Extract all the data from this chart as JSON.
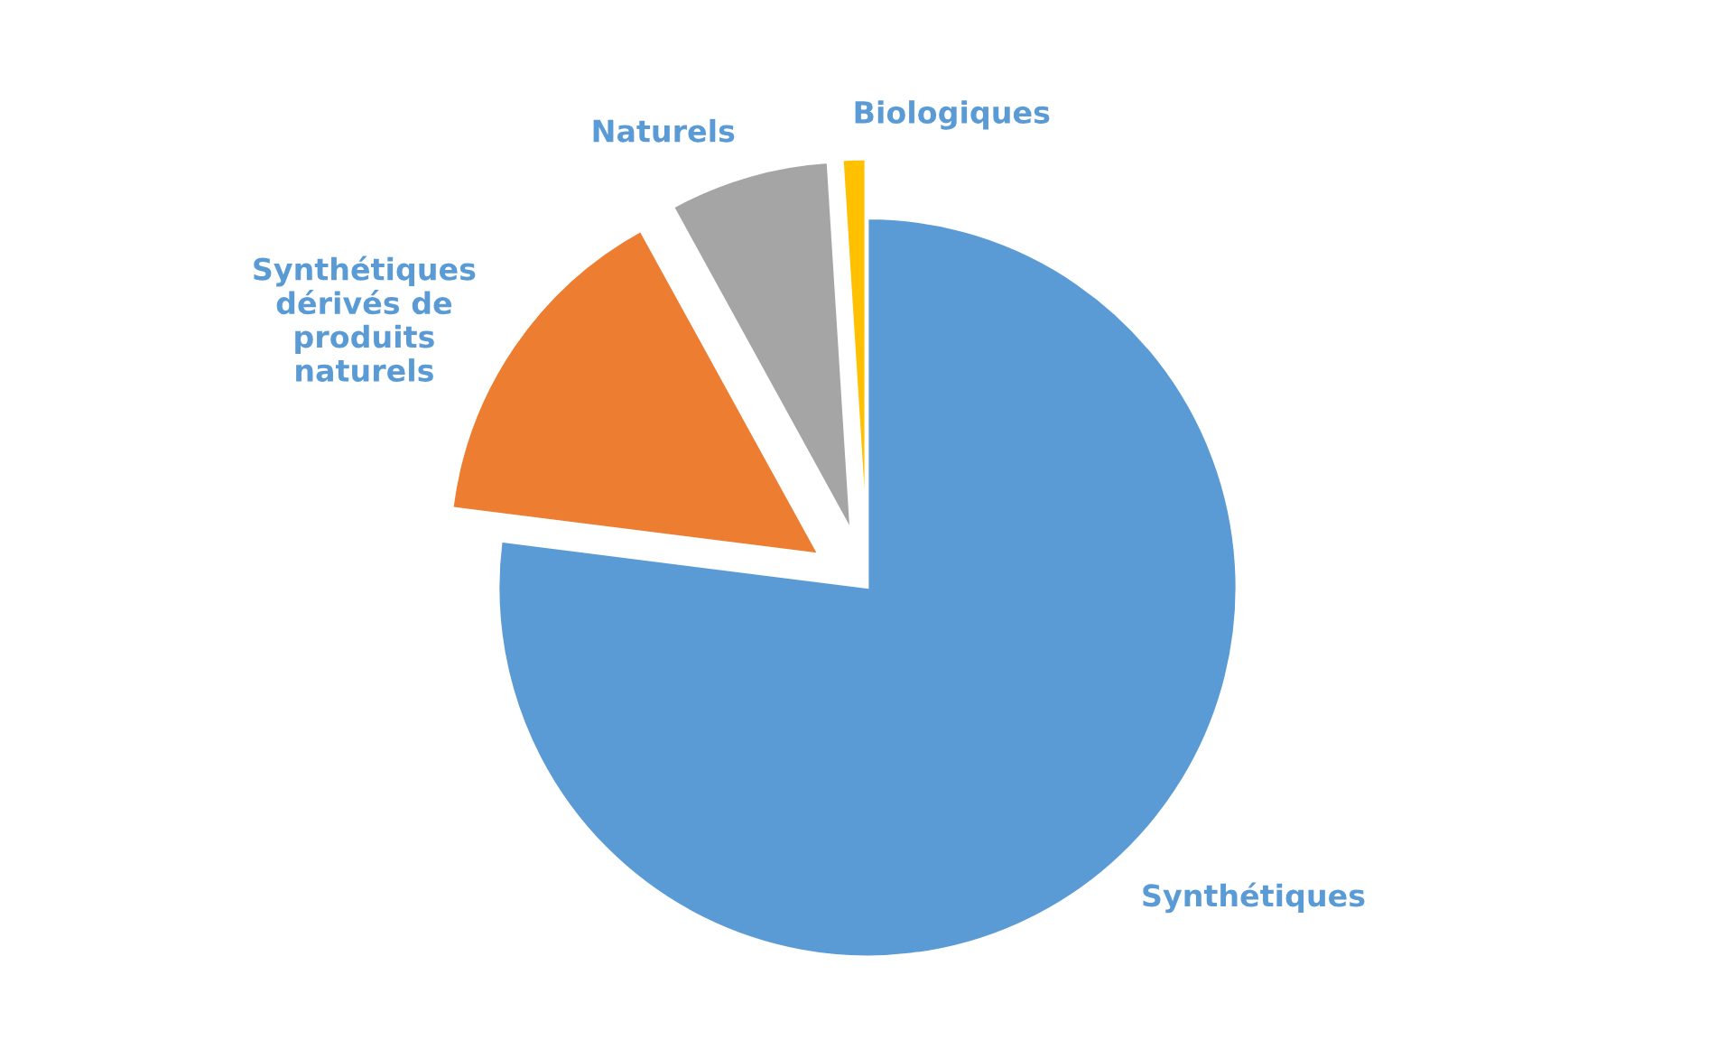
{
  "chart_data": {
    "type": "pie",
    "categories": [
      "Synthétiques",
      "Synthétiques\ndérivés de\nproduits\nnaturels",
      "Naturels",
      "Biologiques"
    ],
    "values": [
      77,
      15,
      7,
      1
    ],
    "colors": [
      "#5b9bd5",
      "#ed7d31",
      "#a5a5a5",
      "#ffc000"
    ]
  }
}
